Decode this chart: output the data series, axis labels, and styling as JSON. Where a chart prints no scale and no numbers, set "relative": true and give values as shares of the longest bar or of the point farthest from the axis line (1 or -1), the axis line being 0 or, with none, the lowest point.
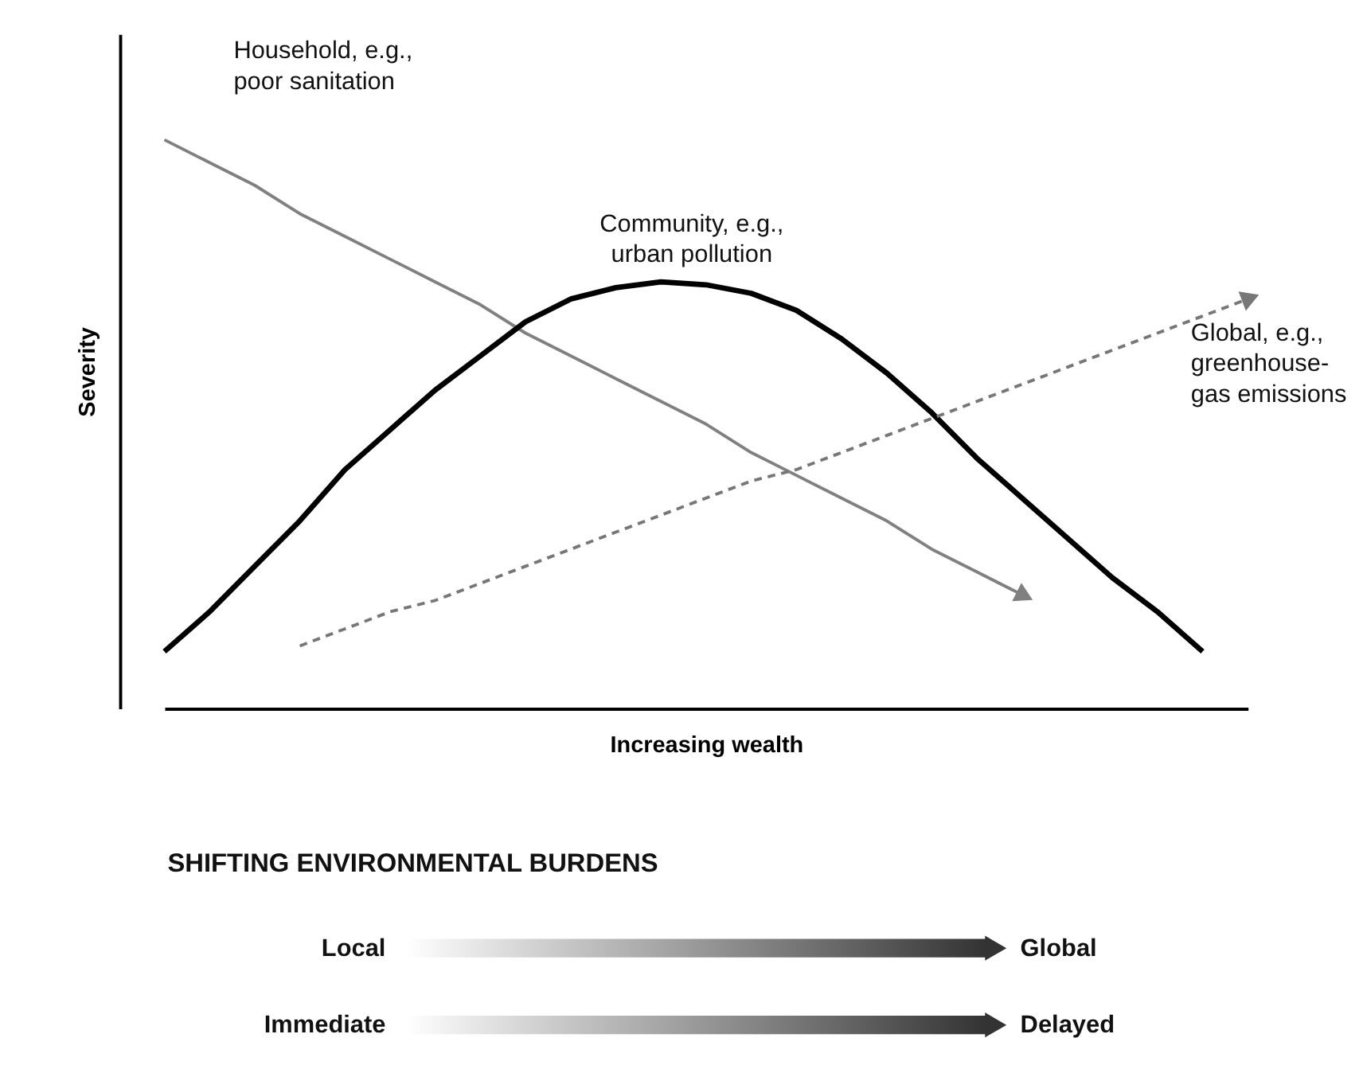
{
  "chart_data": {
    "type": "line",
    "relative": true,
    "xlabel": "Increasing wealth",
    "ylabel": "Severity",
    "categories": [
      null,
      null,
      null,
      null,
      null,
      null,
      null,
      null,
      null,
      null,
      null,
      null,
      null,
      null,
      null,
      null,
      null,
      null,
      null,
      null,
      null,
      null,
      null,
      null,
      null
    ],
    "series": [
      {
        "name": "Household, e.g.,\npoor sanitation",
        "color": "#808080",
        "line_style": "solid",
        "values": [
          1.0,
          0.96,
          0.92,
          0.87,
          0.83,
          0.79,
          0.75,
          0.71,
          0.66,
          0.62,
          0.58,
          0.54,
          0.5,
          0.45,
          0.41,
          0.37,
          0.33,
          0.28,
          0.24,
          0.2,
          null,
          null,
          null,
          null,
          null
        ]
      },
      {
        "name": "Community, e.g.,\nurban pollution",
        "color": "#000000",
        "line_style": "solid",
        "values": [
          0.1,
          0.17,
          0.25,
          0.33,
          0.42,
          0.49,
          0.56,
          0.62,
          0.68,
          0.72,
          0.74,
          0.75,
          0.745,
          0.73,
          0.7,
          0.65,
          0.59,
          0.52,
          0.44,
          0.37,
          0.3,
          0.23,
          0.17,
          0.1,
          null
        ]
      },
      {
        "name": "Global, e.g.,\ngreenhouse-\ngas emissions",
        "color": "#777777",
        "line_style": "dashed",
        "values": [
          null,
          null,
          null,
          0.11,
          0.14,
          0.17,
          0.19,
          0.22,
          0.25,
          0.28,
          0.31,
          0.34,
          0.37,
          0.4,
          0.42,
          0.45,
          0.48,
          0.51,
          0.54,
          0.57,
          0.6,
          0.63,
          0.66,
          0.69,
          0.72
        ]
      }
    ],
    "annotations": [
      "SHIFTING ENVIRONMENTAL BURDENS",
      "Local",
      "Global",
      "Immediate",
      "Delayed"
    ]
  }
}
